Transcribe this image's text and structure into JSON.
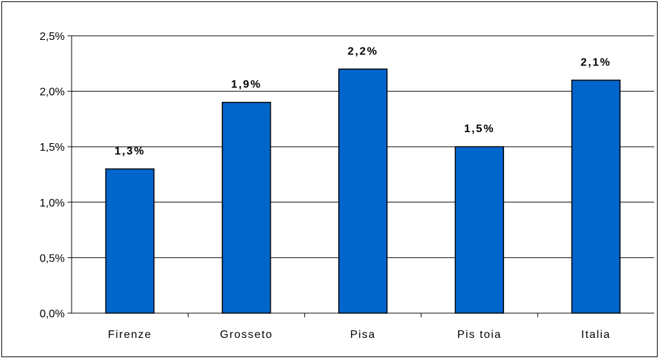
{
  "chart_data": {
    "type": "bar",
    "title": "",
    "xlabel": "",
    "ylabel": "",
    "categories": [
      "Firenze",
      "Grosseto",
      "Pisa",
      "Pistoia",
      "Italia"
    ],
    "category_labels": [
      "Firenze",
      "Grosseto",
      "Pisa",
      "Pis toia",
      "Italia"
    ],
    "values": [
      1.3,
      1.9,
      2.2,
      1.5,
      2.1
    ],
    "data_labels": [
      "1,3%",
      "1,9%",
      "2,2%",
      "1,5%",
      "2,1%"
    ],
    "ylim": [
      0,
      2.5
    ],
    "y_ticks": [
      0,
      0.5,
      1.0,
      1.5,
      2.0,
      2.5
    ],
    "y_tick_labels": [
      "0,0%",
      "0,5%",
      "1,0%",
      "1,5%",
      "2,0%",
      "2,5%"
    ],
    "grid": true,
    "legend": "none",
    "colors": {
      "bar_fill": "#0066CC",
      "bar_stroke": "#000000",
      "gridline": "#000000",
      "background": "#FFFFFF"
    }
  }
}
